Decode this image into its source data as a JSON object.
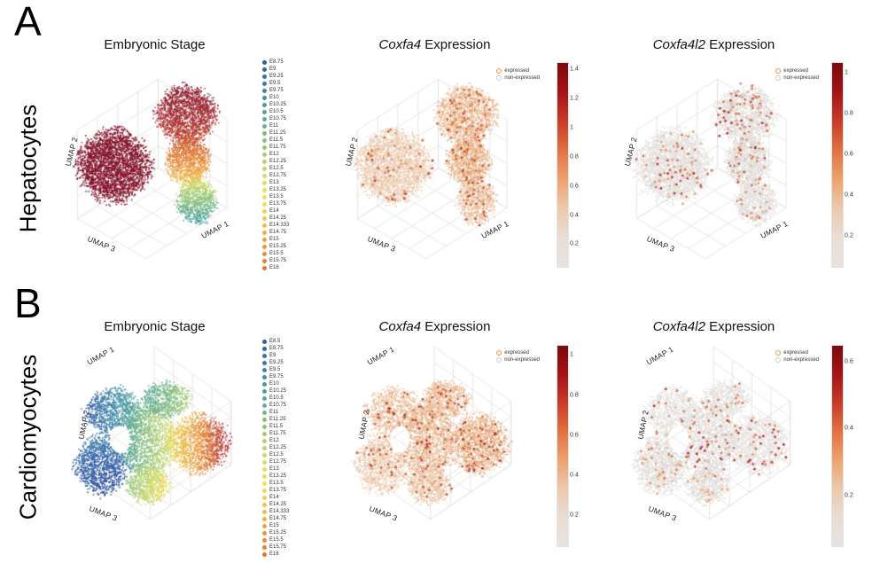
{
  "figure": {
    "panels": [
      {
        "letter": "A",
        "row_label": "Hepatocytes"
      },
      {
        "letter": "B",
        "row_label": "Cardiomyocytes"
      }
    ]
  },
  "style": {
    "background": "#ffffff",
    "grid_color": "#e0e0e0",
    "stage_colormap": [
      "#2e5ea3",
      "#3a7fa9",
      "#4d9f9b",
      "#77b787",
      "#a8cc74",
      "#d8dd64",
      "#f2e355",
      "#f3c148",
      "#f19a38",
      "#ec7423"
    ],
    "expression_gradient": [
      "#7a090d",
      "#a61218",
      "#c83b28",
      "#e2713f",
      "#eda36f",
      "#ecc9ad",
      "#e9ddd4",
      "#e7e3df"
    ],
    "expressed_color": "#f5923e",
    "non_expressed_color": "#cfccc9"
  },
  "chart_data": [
    {
      "id": "A-embryonic-stage",
      "type": "scatter",
      "projection": "3d-umap",
      "cell_type": "Hepatocytes",
      "title": "Embryonic Stage",
      "axes": {
        "x": "UMAP 1",
        "y": "UMAP 2",
        "z": "UMAP 3"
      },
      "color_by": "embryonic stage",
      "legend_position": "right",
      "stages": [
        "E8.75",
        "E9",
        "E9.25",
        "E9.5",
        "E9.75",
        "E10",
        "E10.25",
        "E10.5",
        "E10.75",
        "E11",
        "E11.25",
        "E11.5",
        "E11.75",
        "E12",
        "E12.25",
        "E12.5",
        "E12.75",
        "E13",
        "E13.25",
        "E13.5",
        "E13.75",
        "E14",
        "E14.25",
        "E14.333",
        "E14.75",
        "E15",
        "E15.25",
        "E15.5",
        "E15.75",
        "E16"
      ],
      "clusters": [
        {
          "cx": 0.3,
          "cy": 0.5,
          "rx": 0.17,
          "ry": 0.16,
          "n": 2800,
          "dir": "mix",
          "colors": [
            "#7c0f27",
            "#8e1b33",
            "#821229"
          ]
        },
        {
          "cx": 0.66,
          "cy": 0.26,
          "rx": 0.14,
          "ry": 0.13,
          "n": 1600,
          "dir": "y",
          "colors": [
            "#871427",
            "#a52b33",
            "#c0452e"
          ]
        },
        {
          "cx": 0.67,
          "cy": 0.48,
          "rx": 0.1,
          "ry": 0.11,
          "n": 1100,
          "dir": "y",
          "colors": [
            "#cd5a30",
            "#e88e3e",
            "#edc94e"
          ]
        },
        {
          "cx": 0.71,
          "cy": 0.67,
          "rx": 0.09,
          "ry": 0.1,
          "n": 800,
          "dir": "y",
          "colors": [
            "#d3d95e",
            "#86c17e",
            "#3e98a0"
          ]
        }
      ]
    },
    {
      "id": "A-coxfa4-expression",
      "type": "scatter",
      "projection": "3d-umap",
      "cell_type": "Hepatocytes",
      "gene": "Coxfa4",
      "title_suffix": " Expression",
      "title": "Coxfa4 Expression",
      "axes": {
        "x": "UMAP 1",
        "y": "UMAP 2",
        "z": "UMAP 3"
      },
      "legend": {
        "expressed": "expressed",
        "non_expressed": "non-expressed"
      },
      "colorbar": {
        "ticks": [
          1.4,
          1.2,
          1,
          0.8,
          0.6,
          0.4,
          0.2
        ],
        "max": 1.4
      },
      "clusters": [
        {
          "cx": 0.3,
          "cy": 0.5,
          "rx": 0.17,
          "ry": 0.16,
          "n": 2600,
          "dir": "mix",
          "colors": [
            "#ecd6c3",
            "#eec8a8",
            "#e9bd97",
            "#f1e0d2"
          ],
          "sprinkle": {
            "p": 0.03,
            "colors": [
              "#d0662f",
              "#b23320",
              "#e0884b"
            ]
          }
        },
        {
          "cx": 0.66,
          "cy": 0.26,
          "rx": 0.14,
          "ry": 0.13,
          "n": 1500,
          "dir": "mix",
          "colors": [
            "#eabd96",
            "#e7a878",
            "#efd2b8"
          ],
          "sprinkle": {
            "p": 0.05,
            "colors": [
              "#c44a26",
              "#d96a35"
            ]
          }
        },
        {
          "cx": 0.67,
          "cy": 0.48,
          "rx": 0.1,
          "ry": 0.11,
          "n": 1050,
          "dir": "mix",
          "colors": [
            "#e9b488",
            "#eccdb0",
            "#e5a26d"
          ],
          "sprinkle": {
            "p": 0.05,
            "colors": [
              "#c44a26"
            ]
          }
        },
        {
          "cx": 0.71,
          "cy": 0.67,
          "rx": 0.09,
          "ry": 0.1,
          "n": 750,
          "dir": "mix",
          "colors": [
            "#ecc7a4",
            "#e7ab7d",
            "#f0d9c4"
          ],
          "sprinkle": {
            "p": 0.04,
            "colors": [
              "#c44a26"
            ]
          }
        }
      ]
    },
    {
      "id": "A-coxfa4l2-expression",
      "type": "scatter",
      "projection": "3d-umap",
      "cell_type": "Hepatocytes",
      "gene": "Coxfa4l2",
      "title_suffix": " Expression",
      "title": "Coxfa4l2 Expression",
      "axes": {
        "x": "UMAP 1",
        "y": "UMAP 2",
        "z": "UMAP 3"
      },
      "legend": {
        "expressed": "expressed",
        "non_expressed": "non-expressed"
      },
      "colorbar": {
        "ticks": [
          1,
          0.8,
          0.6,
          0.4,
          0.2
        ],
        "max": 1.0
      },
      "clusters": [
        {
          "cx": 0.3,
          "cy": 0.5,
          "rx": 0.17,
          "ry": 0.16,
          "n": 2600,
          "dir": "mix",
          "colors": [
            "#e4e1de",
            "#dcd8d4",
            "#eae8e5"
          ],
          "sprinkle": {
            "p": 0.03,
            "colors": [
              "#d96a35",
              "#b3271f",
              "#ef9a5f"
            ]
          }
        },
        {
          "cx": 0.66,
          "cy": 0.26,
          "rx": 0.14,
          "ry": 0.13,
          "n": 1500,
          "dir": "mix",
          "colors": [
            "#e2dedb",
            "#d9d5d1",
            "#e8e5e2"
          ],
          "sprinkle": {
            "p": 0.05,
            "colors": [
              "#d96a35",
              "#b3271f"
            ]
          }
        },
        {
          "cx": 0.67,
          "cy": 0.48,
          "rx": 0.1,
          "ry": 0.11,
          "n": 1050,
          "dir": "mix",
          "colors": [
            "#e4e1de",
            "#dcd8d4"
          ],
          "sprinkle": {
            "p": 0.04,
            "colors": [
              "#e07b3f",
              "#b3271f"
            ]
          }
        },
        {
          "cx": 0.71,
          "cy": 0.67,
          "rx": 0.09,
          "ry": 0.1,
          "n": 750,
          "dir": "mix",
          "colors": [
            "#e4e1de",
            "#dfdbd7"
          ],
          "sprinkle": {
            "p": 0.04,
            "colors": [
              "#d96a35"
            ]
          }
        }
      ]
    },
    {
      "id": "B-embryonic-stage",
      "type": "scatter",
      "projection": "3d-umap",
      "cell_type": "Cardiomyocytes",
      "title": "Embryonic Stage",
      "axes": {
        "x": "UMAP 1",
        "y": "UMAP 2",
        "z": "UMAP 3"
      },
      "color_by": "embryonic stage",
      "legend_position": "right",
      "stages": [
        "E8.5",
        "E8.75",
        "E9",
        "E9.25",
        "E9.5",
        "E9.75",
        "E10",
        "E10.25",
        "E10.5",
        "E10.75",
        "E11",
        "E11.25",
        "E11.5",
        "E11.75",
        "E12",
        "E12.25",
        "E12.5",
        "E12.75",
        "E13",
        "E13.25",
        "E13.5",
        "E13.75",
        "E14",
        "E14.25",
        "E14.333",
        "E14.75",
        "E15",
        "E15.25",
        "E15.5",
        "E15.75",
        "E16"
      ],
      "holes": [
        {
          "cx": 0.33,
          "cy": 0.46,
          "rx": 0.05,
          "ry": 0.065
        }
      ],
      "clusters": [
        {
          "cx": 0.3,
          "cy": 0.33,
          "rx": 0.13,
          "ry": 0.11,
          "n": 950,
          "dir": "x",
          "colors": [
            "#2d5ca4",
            "#3f8aa8",
            "#57a898"
          ]
        },
        {
          "cx": 0.24,
          "cy": 0.58,
          "rx": 0.12,
          "ry": 0.13,
          "n": 1150,
          "dir": "y",
          "colors": [
            "#3a7dae",
            "#2d5ca4",
            "#2a4f9b"
          ]
        },
        {
          "cx": 0.47,
          "cy": 0.47,
          "rx": 0.13,
          "ry": 0.17,
          "n": 1450,
          "dir": "x",
          "colors": [
            "#4fa394",
            "#93c47e",
            "#dde26a"
          ]
        },
        {
          "cx": 0.56,
          "cy": 0.27,
          "rx": 0.11,
          "ry": 0.08,
          "n": 650,
          "dir": "x",
          "colors": [
            "#57a898",
            "#7bb989",
            "#a8cf74"
          ]
        },
        {
          "cx": 0.72,
          "cy": 0.48,
          "rx": 0.14,
          "ry": 0.13,
          "n": 1350,
          "dir": "x",
          "colors": [
            "#ecd95c",
            "#ec9a3c",
            "#b8262e"
          ]
        },
        {
          "cx": 0.47,
          "cy": 0.68,
          "rx": 0.1,
          "ry": 0.08,
          "n": 600,
          "dir": "x",
          "colors": [
            "#8fc47e",
            "#cdd968",
            "#ecd95c"
          ]
        }
      ]
    },
    {
      "id": "B-coxfa4-expression",
      "type": "scatter",
      "projection": "3d-umap",
      "cell_type": "Cardiomyocytes",
      "gene": "Coxfa4",
      "title_suffix": " Expression",
      "title": "Coxfa4 Expression",
      "axes": {
        "x": "UMAP 1",
        "y": "UMAP 2",
        "z": "UMAP 3"
      },
      "legend": {
        "expressed": "expressed",
        "non_expressed": "non-expressed"
      },
      "colorbar": {
        "ticks": [
          1,
          0.8,
          0.6,
          0.4,
          0.2
        ],
        "max": 1.0
      },
      "holes": [
        {
          "cx": 0.33,
          "cy": 0.46,
          "rx": 0.05,
          "ry": 0.065
        }
      ],
      "clusters": [
        {
          "cx": 0.3,
          "cy": 0.33,
          "rx": 0.13,
          "ry": 0.11,
          "n": 900,
          "dir": "mix",
          "colors": [
            "#eabf9d",
            "#eccdb2",
            "#e8b188"
          ],
          "sprinkle": {
            "p": 0.03,
            "colors": [
              "#c44a26",
              "#b3271f"
            ]
          }
        },
        {
          "cx": 0.24,
          "cy": 0.58,
          "rx": 0.12,
          "ry": 0.13,
          "n": 1100,
          "dir": "mix",
          "colors": [
            "#ecd3bd",
            "#e9b992",
            "#efdccb"
          ],
          "sprinkle": {
            "p": 0.03,
            "colors": [
              "#c44a26"
            ]
          }
        },
        {
          "cx": 0.47,
          "cy": 0.47,
          "rx": 0.13,
          "ry": 0.17,
          "n": 1400,
          "dir": "mix",
          "colors": [
            "#e9b488",
            "#eccdb0",
            "#e2a470"
          ],
          "sprinkle": {
            "p": 0.04,
            "colors": [
              "#c44a26",
              "#b3271f"
            ]
          }
        },
        {
          "cx": 0.56,
          "cy": 0.27,
          "rx": 0.11,
          "ry": 0.08,
          "n": 620,
          "dir": "mix",
          "colors": [
            "#eabf9d",
            "#e8b188"
          ],
          "sprinkle": {
            "p": 0.04,
            "colors": [
              "#c44a26"
            ]
          }
        },
        {
          "cx": 0.72,
          "cy": 0.48,
          "rx": 0.14,
          "ry": 0.13,
          "n": 1300,
          "dir": "mix",
          "colors": [
            "#e8ac7c",
            "#eccdb0",
            "#e59c66"
          ],
          "sprinkle": {
            "p": 0.05,
            "colors": [
              "#b3271f",
              "#c44a26"
            ]
          }
        },
        {
          "cx": 0.47,
          "cy": 0.68,
          "rx": 0.1,
          "ry": 0.08,
          "n": 580,
          "dir": "mix",
          "colors": [
            "#ecd3bd",
            "#e9b992"
          ],
          "sprinkle": {
            "p": 0.03,
            "colors": [
              "#c44a26"
            ]
          }
        }
      ]
    },
    {
      "id": "B-coxfa4l2-expression",
      "type": "scatter",
      "projection": "3d-umap",
      "cell_type": "Cardiomyocytes",
      "gene": "Coxfa4l2",
      "title_suffix": " Expression",
      "title": "Coxfa4l2 Expression",
      "axes": {
        "x": "UMAP 1",
        "y": "UMAP 2",
        "z": "UMAP 3"
      },
      "legend": {
        "expressed": "expressed",
        "non_expressed": "non-expressed"
      },
      "colorbar": {
        "ticks": [
          0.6,
          0.4,
          0.2
        ],
        "max": 0.6
      },
      "holes": [
        {
          "cx": 0.33,
          "cy": 0.46,
          "rx": 0.05,
          "ry": 0.065
        }
      ],
      "clusters": [
        {
          "cx": 0.3,
          "cy": 0.33,
          "rx": 0.13,
          "ry": 0.11,
          "n": 900,
          "dir": "mix",
          "colors": [
            "#e4e1de",
            "#dcd8d4",
            "#eae8e5"
          ],
          "sprinkle": {
            "p": 0.03,
            "colors": [
              "#d96a35",
              "#b3271f"
            ]
          }
        },
        {
          "cx": 0.24,
          "cy": 0.58,
          "rx": 0.12,
          "ry": 0.13,
          "n": 1100,
          "dir": "mix",
          "colors": [
            "#e4e1de",
            "#dcd8d4"
          ],
          "sprinkle": {
            "p": 0.03,
            "colors": [
              "#d96a35",
              "#ef9a5f"
            ]
          }
        },
        {
          "cx": 0.47,
          "cy": 0.47,
          "rx": 0.13,
          "ry": 0.17,
          "n": 1400,
          "dir": "mix",
          "colors": [
            "#e2dedb",
            "#d9d5d1",
            "#e8e5e2"
          ],
          "sprinkle": {
            "p": 0.04,
            "colors": [
              "#b3271f",
              "#d96a35"
            ]
          }
        },
        {
          "cx": 0.56,
          "cy": 0.27,
          "rx": 0.11,
          "ry": 0.08,
          "n": 620,
          "dir": "mix",
          "colors": [
            "#e4e1de",
            "#dfdbd7"
          ],
          "sprinkle": {
            "p": 0.03,
            "colors": [
              "#d96a35"
            ]
          }
        },
        {
          "cx": 0.72,
          "cy": 0.48,
          "rx": 0.14,
          "ry": 0.13,
          "n": 1300,
          "dir": "mix",
          "colors": [
            "#e2dedb",
            "#eae8e5"
          ],
          "sprinkle": {
            "p": 0.04,
            "colors": [
              "#b3271f",
              "#d96a35"
            ]
          }
        },
        {
          "cx": 0.47,
          "cy": 0.68,
          "rx": 0.1,
          "ry": 0.08,
          "n": 580,
          "dir": "mix",
          "colors": [
            "#e4e1de",
            "#dcd8d4"
          ],
          "sprinkle": {
            "p": 0.03,
            "colors": [
              "#ef9a5f"
            ]
          }
        }
      ]
    }
  ]
}
